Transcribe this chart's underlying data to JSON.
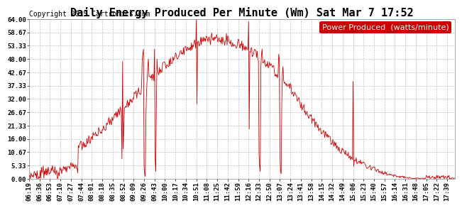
{
  "title": "Daily Energy Produced Per Minute (Wm) Sat Mar 7 17:52",
  "copyright": "Copyright 2015 Cartronics.com",
  "legend_label": "Power Produced  (watts/minute)",
  "legend_bg": "#cc0000",
  "legend_fg": "#ffffff",
  "line_color": "#cc0000",
  "bg_color": "#ffffff",
  "grid_color": "#bbbbbb",
  "ylim": [
    0.0,
    64.0
  ],
  "yticks": [
    0.0,
    5.33,
    10.67,
    16.0,
    21.33,
    26.67,
    32.0,
    37.33,
    42.67,
    48.0,
    53.33,
    58.67,
    64.0
  ],
  "xtick_labels": [
    "06:19",
    "06:36",
    "06:53",
    "07:10",
    "07:27",
    "07:44",
    "08:01",
    "08:18",
    "08:35",
    "08:52",
    "09:09",
    "09:26",
    "09:43",
    "10:00",
    "10:17",
    "10:34",
    "10:51",
    "11:08",
    "11:25",
    "11:42",
    "11:59",
    "12:16",
    "12:33",
    "12:50",
    "13:07",
    "13:24",
    "13:41",
    "13:58",
    "14:15",
    "14:32",
    "14:49",
    "15:06",
    "15:23",
    "15:40",
    "15:57",
    "16:14",
    "16:31",
    "16:48",
    "17:05",
    "17:22",
    "17:39"
  ],
  "title_fontsize": 11,
  "copyright_fontsize": 7,
  "legend_fontsize": 8,
  "tick_fontsize": 6.5
}
